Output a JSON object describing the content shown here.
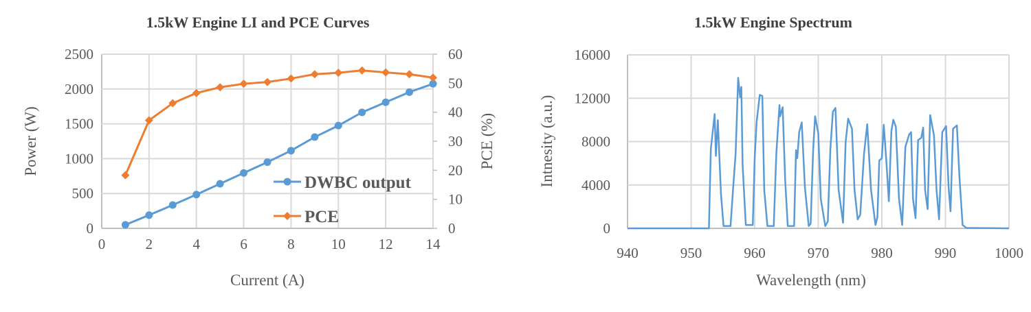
{
  "colors": {
    "power": "#5b9bd5",
    "pce": "#ed7d31",
    "grid": "#d9d9d9",
    "text": "#595959"
  },
  "chart_data": [
    {
      "type": "line",
      "title": "1.5kW Engine LI and PCE Curves",
      "xlabel": "Current (A)",
      "ylabel": "Power (W)",
      "y2label": "PCE (%)",
      "xlim": [
        0,
        14
      ],
      "ylim": [
        0,
        2500
      ],
      "y2lim": [
        0,
        60
      ],
      "xticks": [
        "0",
        "2",
        "4",
        "6",
        "8",
        "10",
        "12",
        "14"
      ],
      "yticks": [
        "0",
        "500",
        "1000",
        "1500",
        "2000",
        "2500"
      ],
      "y2ticks": [
        "0",
        "10",
        "20",
        "30",
        "40",
        "50",
        "60"
      ],
      "grid": true,
      "legend_placement": "bottom-right",
      "x": [
        1,
        2,
        3,
        4,
        5,
        6,
        7,
        8,
        9,
        10,
        11,
        12,
        13,
        14
      ],
      "series": [
        {
          "name": "DWBC output",
          "axis": "left",
          "marker": "circle",
          "color": "#5b9bd5",
          "values": [
            50,
            190,
            335,
            485,
            640,
            795,
            950,
            1115,
            1310,
            1475,
            1665,
            1810,
            1955,
            2075
          ]
        },
        {
          "name": "PCE",
          "axis": "right",
          "marker": "diamond",
          "color": "#ed7d31",
          "values": [
            18.3,
            37.2,
            43.1,
            46.6,
            48.6,
            49.8,
            50.4,
            51.6,
            53.1,
            53.6,
            54.4,
            53.7,
            53.1,
            51.9
          ]
        }
      ]
    },
    {
      "type": "line",
      "title": "1.5kW Engine Spectrum",
      "xlabel": "Wavelength (nm)",
      "ylabel": "Intnesity (a.u.)",
      "xlim": [
        940,
        1000
      ],
      "ylim": [
        0,
        16000
      ],
      "xticks": [
        "940",
        "950",
        "960",
        "970",
        "980",
        "990",
        "1000"
      ],
      "yticks": [
        "0",
        "4000",
        "8000",
        "12000",
        "16000"
      ],
      "grid": true,
      "color": "#5b9bd5",
      "points": [
        [
          940,
          0
        ],
        [
          952.5,
          0
        ],
        [
          952.8,
          0
        ],
        [
          953.1,
          7300
        ],
        [
          953.7,
          10540
        ],
        [
          953.9,
          6680
        ],
        [
          954.2,
          9980
        ],
        [
          954.7,
          3130
        ],
        [
          955.1,
          210
        ],
        [
          956.2,
          210
        ],
        [
          956.6,
          3650
        ],
        [
          957.0,
          6890
        ],
        [
          957.4,
          13880
        ],
        [
          957.7,
          12100
        ],
        [
          957.9,
          13040
        ],
        [
          958.1,
          5840
        ],
        [
          958.6,
          310
        ],
        [
          959.7,
          310
        ],
        [
          960.0,
          6470
        ],
        [
          960.3,
          9810
        ],
        [
          960.8,
          12310
        ],
        [
          961.2,
          12210
        ],
        [
          961.5,
          3550
        ],
        [
          962.0,
          210
        ],
        [
          963.0,
          210
        ],
        [
          963.4,
          6890
        ],
        [
          963.9,
          11370
        ],
        [
          964.0,
          10330
        ],
        [
          964.4,
          11170
        ],
        [
          964.8,
          4380
        ],
        [
          965.2,
          210
        ],
        [
          966.2,
          210
        ],
        [
          966.5,
          7200
        ],
        [
          966.7,
          6470
        ],
        [
          967.0,
          8870
        ],
        [
          967.4,
          9770
        ],
        [
          967.9,
          3760
        ],
        [
          968.5,
          210
        ],
        [
          968.8,
          420
        ],
        [
          969.2,
          7300
        ],
        [
          969.5,
          10330
        ],
        [
          969.7,
          9700
        ],
        [
          970.0,
          8770
        ],
        [
          970.4,
          2710
        ],
        [
          971.1,
          210
        ],
        [
          971.5,
          630
        ],
        [
          971.9,
          7300
        ],
        [
          972.3,
          10750
        ],
        [
          972.7,
          11100
        ],
        [
          973.2,
          3550
        ],
        [
          973.9,
          520
        ],
        [
          974.3,
          7930
        ],
        [
          974.7,
          10120
        ],
        [
          975.3,
          9180
        ],
        [
          975.7,
          3550
        ],
        [
          976.2,
          830
        ],
        [
          976.6,
          1250
        ],
        [
          977.2,
          6890
        ],
        [
          977.7,
          9600
        ],
        [
          978.3,
          3550
        ],
        [
          979.0,
          310
        ],
        [
          979.3,
          1040
        ],
        [
          979.6,
          6260
        ],
        [
          980.0,
          6470
        ],
        [
          980.3,
          9560
        ],
        [
          980.7,
          6260
        ],
        [
          981.1,
          2500
        ],
        [
          981.5,
          8970
        ],
        [
          981.8,
          10020
        ],
        [
          982.2,
          9390
        ],
        [
          982.7,
          2710
        ],
        [
          983.2,
          310
        ],
        [
          983.7,
          7510
        ],
        [
          984.3,
          8660
        ],
        [
          984.6,
          8870
        ],
        [
          984.9,
          2710
        ],
        [
          985.3,
          940
        ],
        [
          985.7,
          8140
        ],
        [
          986.2,
          8350
        ],
        [
          986.5,
          9290
        ],
        [
          986.8,
          3550
        ],
        [
          987.2,
          1770
        ],
        [
          987.6,
          10440
        ],
        [
          988.2,
          8560
        ],
        [
          988.6,
          3550
        ],
        [
          989.0,
          830
        ],
        [
          989.5,
          8870
        ],
        [
          990.1,
          9430
        ],
        [
          990.5,
          3760
        ],
        [
          990.8,
          1570
        ],
        [
          991.2,
          9180
        ],
        [
          991.8,
          9500
        ],
        [
          992.2,
          4800
        ],
        [
          992.7,
          310
        ],
        [
          993.3,
          40
        ],
        [
          1000,
          0
        ]
      ]
    }
  ]
}
